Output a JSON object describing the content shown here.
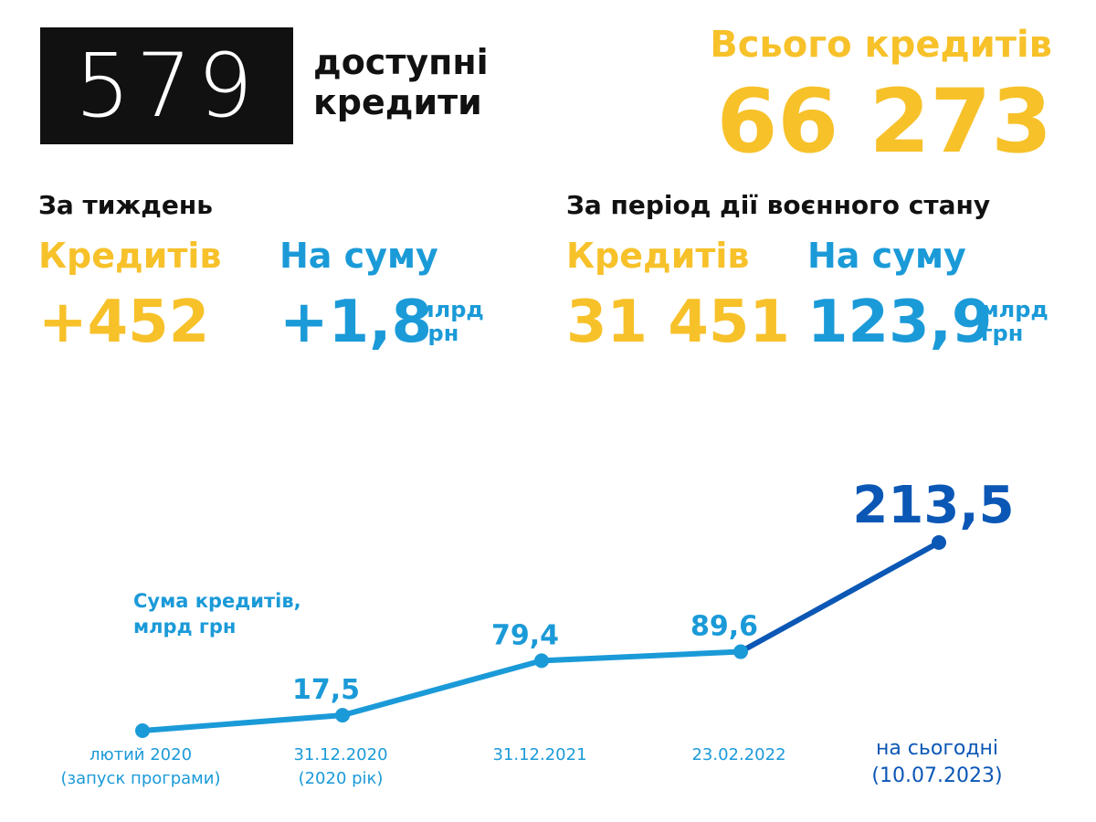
{
  "logo": {
    "number": "579",
    "line1": "доступні",
    "line2": "кредити"
  },
  "total": {
    "label": "Всього кредитів",
    "value": "66 273"
  },
  "week": {
    "title": "За тиждень",
    "credits_label": "Кредитів",
    "credits_value": "+452",
    "sum_label": "На суму",
    "sum_value": "+1,8",
    "sum_unit_1": "млрд",
    "sum_unit_2": "грн"
  },
  "martial": {
    "title": "За період дії воєнного стану",
    "credits_label": "Кредитів",
    "credits_value": "31 451",
    "sum_label": "На суму",
    "sum_value": "123,9",
    "sum_unit_1": "млрд",
    "sum_unit_2": "грн"
  },
  "colors": {
    "yellow": "#f7c12a",
    "light_blue": "#1b9ad8",
    "dark_blue": "#0b57b5",
    "black": "#111111"
  },
  "chart_data": {
    "type": "line",
    "ylabel_line1": "Сума кредитів,",
    "ylabel_line2": "млрд грн",
    "points": [
      {
        "x_line1": "лютий 2020",
        "x_line2": "(запуск програми)",
        "value": 0,
        "label": ""
      },
      {
        "x_line1": "31.12.2020",
        "x_line2": "(2020 рік)",
        "value": 17.5,
        "label": "17,5"
      },
      {
        "x_line1": "31.12.2021",
        "x_line2": "",
        "value": 79.4,
        "label": "79,4"
      },
      {
        "x_line1": "23.02.2022",
        "x_line2": "",
        "value": 89.6,
        "label": "89,6"
      },
      {
        "x_line1": "на сьогодні",
        "x_line2": "(10.07.2023)",
        "value": 213.5,
        "label": "213,5"
      }
    ],
    "highlight_last_segment": true
  }
}
